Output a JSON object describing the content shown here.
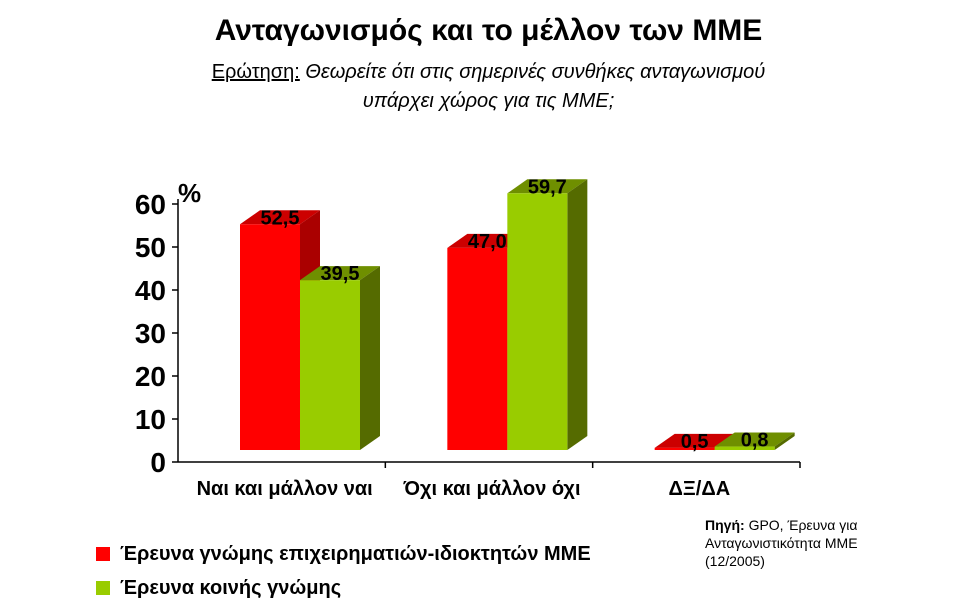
{
  "title": "Ανταγωνισμός και το μέλλον των ΜΜΕ",
  "question": {
    "label": "Ερώτηση:",
    "line1": "Θεωρείτε ότι στις σημερινές συνθήκες ανταγωνισμού",
    "line2": "υπάρχει χώρος για τις ΜΜΕ;"
  },
  "source": {
    "label": "Πηγή:",
    "line1": "GPO, Έρευνα για",
    "line2": "Ανταγωνιστικότητα ΜΜΕ",
    "line3": "(12/2005)"
  },
  "chart_data": {
    "type": "bar",
    "categories": [
      "Ναι και μάλλον ναι",
      "Όχι και μάλλον όχι",
      "ΔΞ/ΔΑ"
    ],
    "series": [
      {
        "name": "Έρευνα γνώμης επιχειρηματιών-ιδιοκτητών ΜΜΕ",
        "values": [
          52.5,
          47.0,
          0.5
        ],
        "labels": [
          "52,5",
          "47,0",
          "0,5"
        ],
        "color": "#ff0000",
        "side_color": "#aa0000",
        "top_color": "#cc0000"
      },
      {
        "name": "Έρευνα κοινής γνώμης",
        "values": [
          39.5,
          59.7,
          0.8
        ],
        "labels": [
          "39,5",
          "59,7",
          "0,8"
        ],
        "color": "#99cc00",
        "side_color": "#556b00",
        "top_color": "#6f8f00"
      }
    ],
    "yticks": [
      "0",
      "10",
      "20",
      "30",
      "40",
      "50",
      "60"
    ],
    "ylabel": "%",
    "ylim": [
      0,
      60
    ],
    "grid": false,
    "legend": "bottom-left"
  }
}
